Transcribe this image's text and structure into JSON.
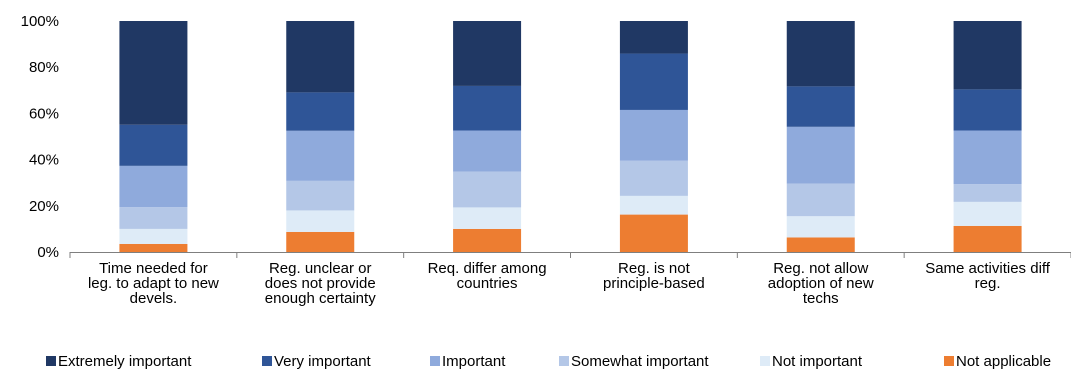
{
  "chart_data": {
    "type": "bar",
    "stacked": true,
    "percent": true,
    "title": "",
    "xlabel": "",
    "ylabel": "",
    "ylim": [
      0,
      100
    ],
    "yticks": [
      "0%",
      "20%",
      "40%",
      "60%",
      "80%",
      "100%"
    ],
    "grid": false,
    "legend_position": "bottom",
    "categories": [
      [
        "Time needed for",
        "leg. to adapt to new",
        "devels."
      ],
      [
        "Reg. unclear or",
        "does not provide",
        "enough certainty"
      ],
      [
        "Req. differ among",
        "countries"
      ],
      [
        "Reg. is not",
        "principle-based"
      ],
      [
        "Reg. not allow",
        "adoption of new",
        "techs"
      ],
      [
        "Same activities diff",
        "reg."
      ]
    ],
    "series": [
      {
        "name": "Not applicable",
        "color": "#ED7D31",
        "values": [
          3.5,
          8.7,
          10,
          16.2,
          6.3,
          11.3
        ]
      },
      {
        "name": "Not important",
        "color": "#DEEBF7",
        "values": [
          6.5,
          9.3,
          9.3,
          8.1,
          9.2,
          10.4
        ]
      },
      {
        "name": "Somewhat important",
        "color": "#B4C7E7",
        "values": [
          9.4,
          12.8,
          15.5,
          15.3,
          14.1,
          7.7
        ]
      },
      {
        "name": "Important",
        "color": "#8FAADC",
        "values": [
          17.9,
          21.7,
          17.8,
          21.9,
          24.6,
          23.2
        ]
      },
      {
        "name": "Very important",
        "color": "#2F5597",
        "values": [
          17.8,
          16.6,
          19.3,
          24.4,
          17.5,
          17.8
        ]
      },
      {
        "name": "Extremely important",
        "color": "#203864",
        "values": [
          44.9,
          30.9,
          28.1,
          14.1,
          28.3,
          29.6
        ]
      }
    ],
    "legend_order": [
      "Extremely important",
      "Very important",
      "Important",
      "Somewhat important",
      "Not important",
      "Not applicable"
    ]
  }
}
